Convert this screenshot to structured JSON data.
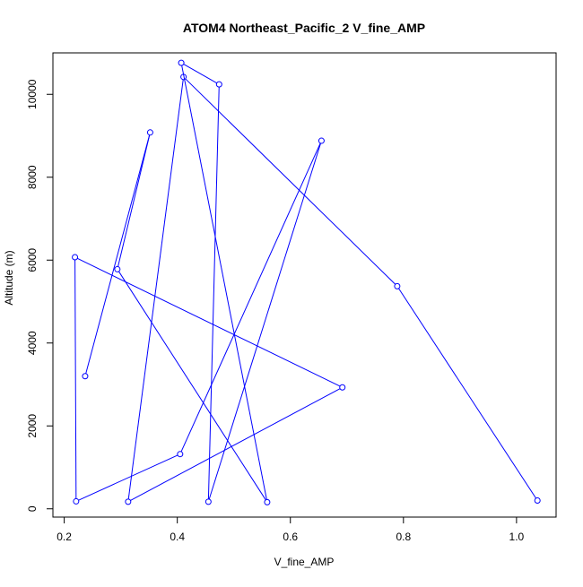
{
  "chart_data": {
    "type": "line",
    "title": "ATOM4 Northeast_Pacific_2 V_fine_AMP",
    "xlabel": "V_fine_AMP",
    "ylabel": "Altitude (m)",
    "xlim": [
      0.18,
      1.07
    ],
    "ylim": [
      -200,
      11000
    ],
    "x_ticks": [
      0.2,
      0.4,
      0.6,
      0.8,
      1.0
    ],
    "x_tick_labels": [
      "0.2",
      "0.4",
      "0.6",
      "0.8",
      "1.0"
    ],
    "y_ticks": [
      0,
      2000,
      4000,
      6000,
      8000,
      10000
    ],
    "y_tick_labels": [
      "0",
      "2000",
      "4000",
      "6000",
      "8000",
      "10000"
    ],
    "grid": false,
    "legend": "none",
    "series": [
      {
        "line_color": "#0000ff",
        "marker": "open-circle",
        "x": [
          0.237,
          0.352,
          0.294,
          0.559,
          0.407,
          0.474,
          0.455,
          0.655,
          0.405,
          0.221,
          0.219,
          0.692,
          0.313,
          0.411,
          0.789,
          1.037
        ],
        "y": [
          3200,
          9080,
          5780,
          160,
          10760,
          10240,
          170,
          8880,
          1320,
          180,
          6070,
          2930,
          170,
          10420,
          5370,
          200
        ]
      }
    ]
  }
}
